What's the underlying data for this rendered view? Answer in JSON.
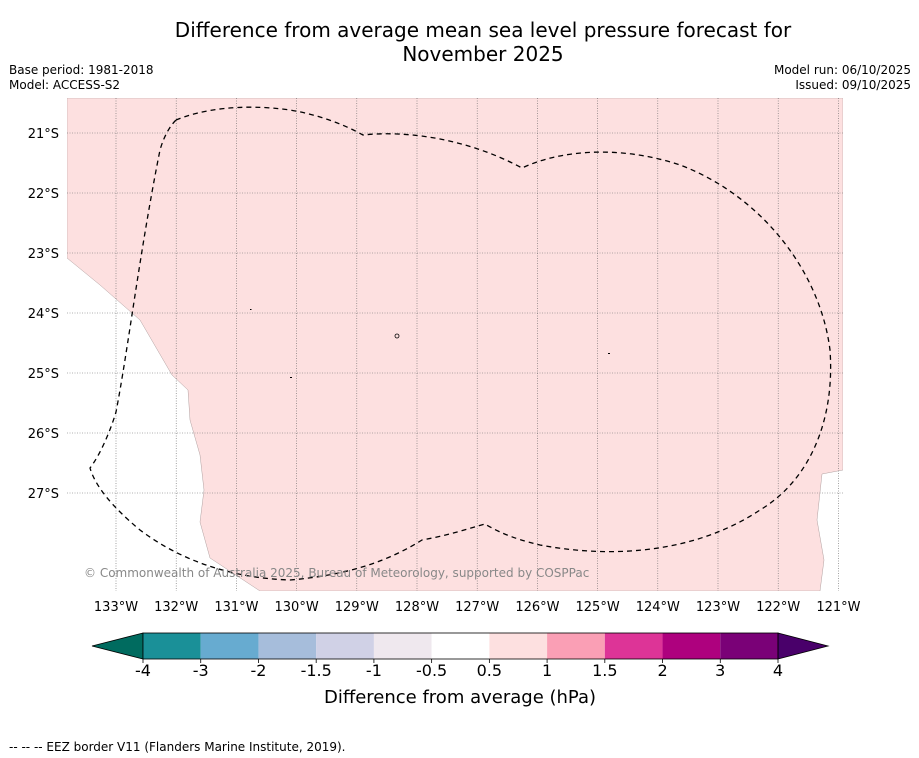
{
  "title_line1": "Difference from average mean sea level pressure forecast for",
  "title_line2": "November 2025",
  "meta_left": {
    "base_period": "Base period: 1981-2018",
    "model": "Model: ACCESS-S2"
  },
  "meta_right": {
    "model_run": "Model run: 06/10/2025",
    "issued": "Issued: 09/10/2025"
  },
  "map": {
    "lat_labels": [
      "21°S",
      "22°S",
      "23°S",
      "24°S",
      "25°S",
      "26°S",
      "27°S"
    ],
    "lon_labels": [
      "133°W",
      "132°W",
      "131°W",
      "130°W",
      "129°W",
      "128°W",
      "127°W",
      "126°W",
      "125°W",
      "124°W",
      "123°W",
      "122°W",
      "121°W"
    ],
    "fill_color": "#fde0e0",
    "fill_category": "0.5 to 1 hPa",
    "copyright": "© Commonwealth of Australia 2025, Bureau of Meteorology, supported by COSPPac"
  },
  "colorbar": {
    "colors": [
      "#006b5f",
      "#1a9098",
      "#67abd0",
      "#a6bddb",
      "#d0d1e6",
      "#efe8ee",
      "#ffffff",
      "#fde0e0",
      "#fa9fb5",
      "#dd3497",
      "#ae017e",
      "#7a0177",
      "#49006a"
    ],
    "tick_labels": [
      "-4",
      "-3",
      "-2",
      "-1.5",
      "-1",
      "-0.5",
      "0.5",
      "1",
      "1.5",
      "2",
      "3",
      "4"
    ],
    "label": "Difference from average (hPa)"
  },
  "footnote": "-- -- -- EEZ border V11 (Flanders Marine Institute, 2019)."
}
